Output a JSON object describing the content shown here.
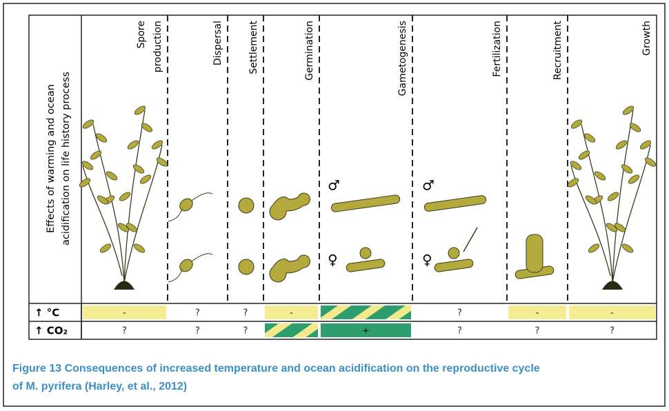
{
  "figure": {
    "y_label": [
      "Effects of warming and ocean",
      "acidification on life history process"
    ],
    "columns": [
      {
        "heading": [
          "Spore",
          "production"
        ]
      },
      {
        "heading": [
          "Dispersal"
        ]
      },
      {
        "heading": [
          "Settlement"
        ]
      },
      {
        "heading": [
          "Germination"
        ]
      },
      {
        "heading": [
          "Gametogenesis"
        ]
      },
      {
        "heading": [
          "Fertilization"
        ]
      },
      {
        "heading": [
          "Recruitment"
        ]
      },
      {
        "heading": [
          "Growth"
        ]
      }
    ],
    "symbols": {
      "male": "♂",
      "female": "♀"
    },
    "rows": [
      {
        "label": "↑ °C",
        "cells": [
          {
            "text": "-",
            "fill": "yellow"
          },
          {
            "text": "?"
          },
          {
            "text": "?"
          },
          {
            "text": "-",
            "fill": "yellow"
          },
          {
            "fill": "hatched"
          },
          {
            "text": "?"
          },
          {
            "text": "-",
            "fill": "yellow"
          },
          {
            "text": "-",
            "fill": "yellow"
          }
        ]
      },
      {
        "label": "↑ CO₂",
        "cells": [
          {
            "text": "?"
          },
          {
            "text": "?"
          },
          {
            "text": "?"
          },
          {
            "fill": "hatched"
          },
          {
            "text": "+",
            "fill": "green"
          },
          {
            "text": "?"
          },
          {
            "text": "?"
          },
          {
            "text": "?"
          }
        ]
      }
    ]
  },
  "caption": {
    "lines": [
      "Figure 13 Consequences of increased temperature and ocean acidification on the reproductive cycle",
      "of M. pyrifera (Harley, et al., 2012)"
    ]
  }
}
